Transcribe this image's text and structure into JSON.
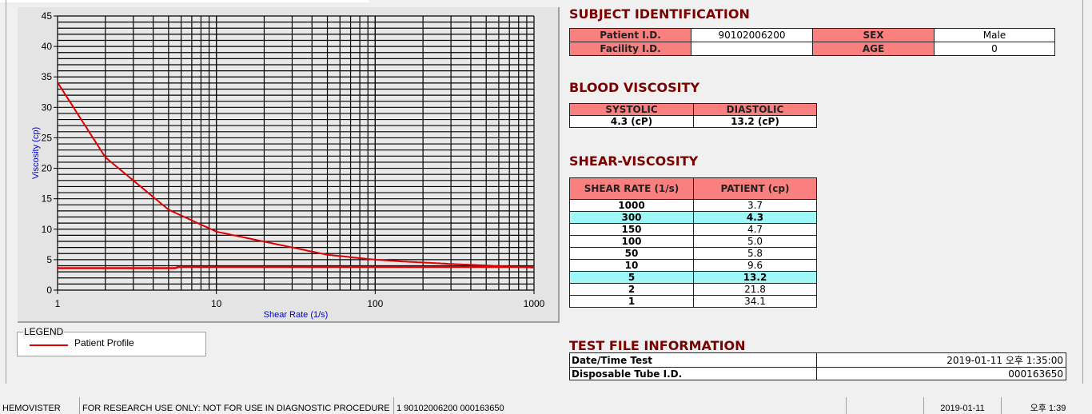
{
  "chart_data": {
    "type": "line",
    "xlabel": "Shear Rate (1/s)",
    "ylabel": "Viscosity (cp)",
    "xscale": "log",
    "xlim": [
      1,
      1000
    ],
    "ylim": [
      0,
      45
    ],
    "xticks": [
      "1",
      "10",
      "100",
      "1000"
    ],
    "yticks": [
      "0",
      "5",
      "10",
      "15",
      "20",
      "25",
      "30",
      "35",
      "40",
      "45"
    ],
    "grid": true,
    "color": "#dd0000",
    "series": [
      {
        "name": "Patient Profile",
        "x": [
          1,
          2,
          5,
          10,
          50,
          100,
          150,
          300,
          1000
        ],
        "y": [
          34.1,
          21.8,
          13.2,
          9.6,
          5.8,
          5.0,
          4.7,
          4.3,
          3.7
        ]
      },
      {
        "x": [
          1,
          5.5,
          5.8,
          1000
        ],
        "y": [
          3.6,
          3.6,
          3.8,
          3.8
        ]
      }
    ],
    "legend": {
      "title": "LEGEND",
      "placement": "bottom-left",
      "entries": [
        "Patient Profile"
      ]
    }
  },
  "subject": {
    "title": "SUBJECT IDENTIFICATION",
    "patient_id_label": "Patient I.D.",
    "patient_id": "90102006200",
    "sex_label": "SEX",
    "sex": "Male",
    "facility_label": "Facility I.D.",
    "facility": "",
    "age_label": "AGE",
    "age": "0"
  },
  "blood": {
    "title": "BLOOD VISCOSITY",
    "systolic_label": "SYSTOLIC",
    "diastolic_label": "DIASTOLIC",
    "systolic": "4.3 (cP)",
    "diastolic": "13.2 (cP)"
  },
  "shear": {
    "title": "SHEAR-VISCOSITY",
    "col1": "SHEAR RATE (1/s)",
    "col2": "PATIENT (cp)",
    "rows": [
      [
        "1000",
        "3.7"
      ],
      [
        "300",
        "4.3"
      ],
      [
        "150",
        "4.7"
      ],
      [
        "100",
        "5.0"
      ],
      [
        "50",
        "5.8"
      ],
      [
        "10",
        "9.6"
      ],
      [
        "5",
        "13.2"
      ],
      [
        "2",
        "21.8"
      ],
      [
        "1",
        "34.1"
      ]
    ],
    "highlight_color": "#9ff8f8"
  },
  "testfile": {
    "title": "TEST FILE INFORMATION",
    "date_label": "Date/Time Test",
    "date": "2019-01-11  오후 1:35:00",
    "tube_label": "Disposable Tube I.D.",
    "tube": "000163650"
  },
  "status": {
    "app": "HEMOVISTER",
    "notice": "FOR RESEARCH USE ONLY: NOT FOR USE IN DIAGNOSTIC PROCEDURES",
    "record": "1  90102006200  000163650",
    "empty": "",
    "date": "2019-01-11",
    "time": "오후 1:39"
  }
}
